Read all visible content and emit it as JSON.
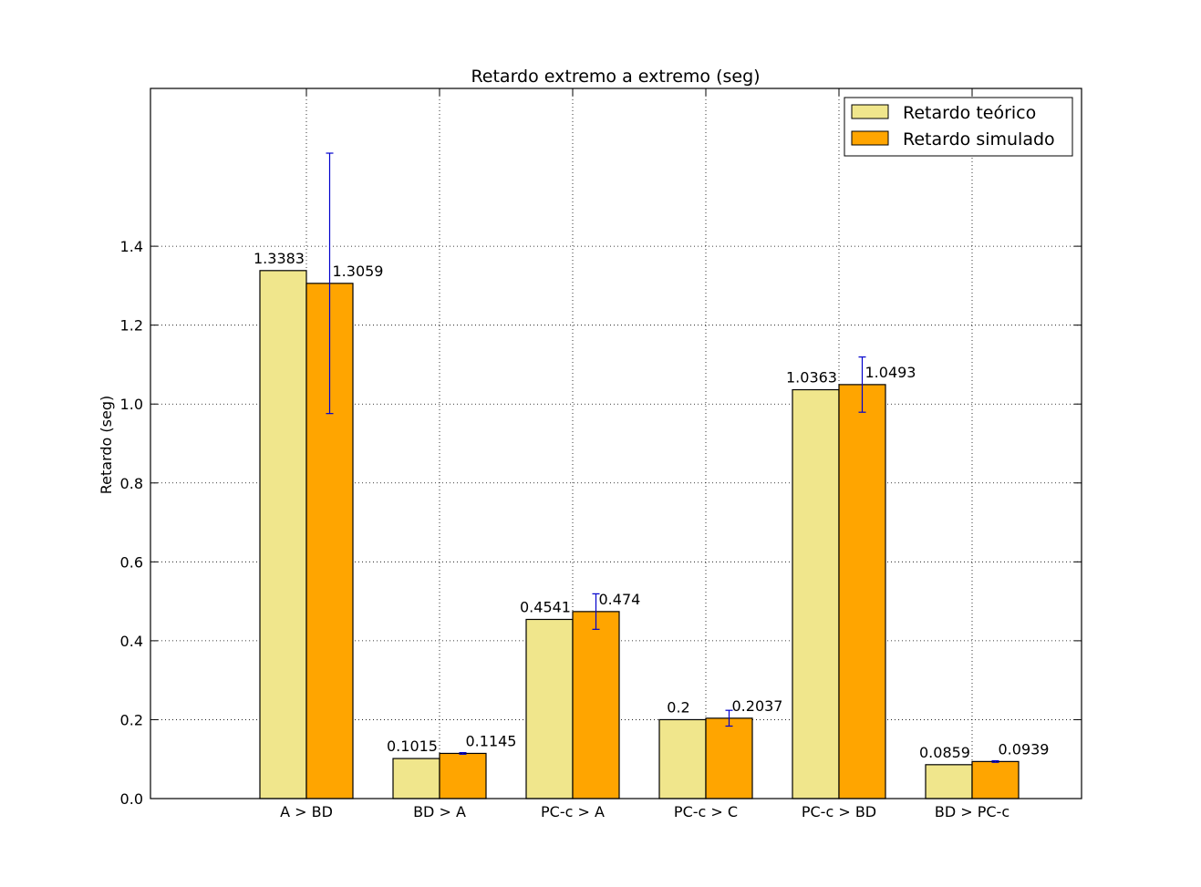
{
  "chart_data": {
    "type": "bar",
    "title": "Retardo extremo a extremo (seg)",
    "xlabel": "",
    "ylabel": "Retardo (seg)",
    "ylim": [
      0,
      1.8
    ],
    "yticks": [
      0.0,
      0.2,
      0.4,
      0.6,
      0.8,
      1.0,
      1.2,
      1.4
    ],
    "ytick_labels": [
      "0.0",
      "0.2",
      "0.4",
      "0.6",
      "0.8",
      "1.0",
      "1.2",
      "1.4"
    ],
    "categories": [
      "A > BD",
      "BD > A",
      "PC-c > A",
      "PC-c > C",
      "PC-c > BD",
      "BD > PC-c"
    ],
    "grid": true,
    "legend_position": "top-right",
    "series": [
      {
        "name": "Retardo teórico",
        "color": "#f0e68c",
        "values": [
          1.3383,
          0.1015,
          0.4541,
          0.2,
          1.0363,
          0.0859
        ],
        "labels": [
          "1.3383",
          "0.1015",
          "0.4541",
          "0.2",
          "1.0363",
          "0.0859"
        ]
      },
      {
        "name": "Retardo simulado",
        "color": "#ffa500",
        "values": [
          1.3059,
          0.1145,
          0.474,
          0.2037,
          1.0493,
          0.0939
        ],
        "labels": [
          "1.3059",
          "0.1145",
          "0.474",
          "0.2037",
          "1.0493",
          "0.0939"
        ],
        "error": [
          0.33,
          0.002,
          0.045,
          0.02,
          0.07,
          0.002
        ],
        "error_color": "#0000cc"
      }
    ]
  }
}
